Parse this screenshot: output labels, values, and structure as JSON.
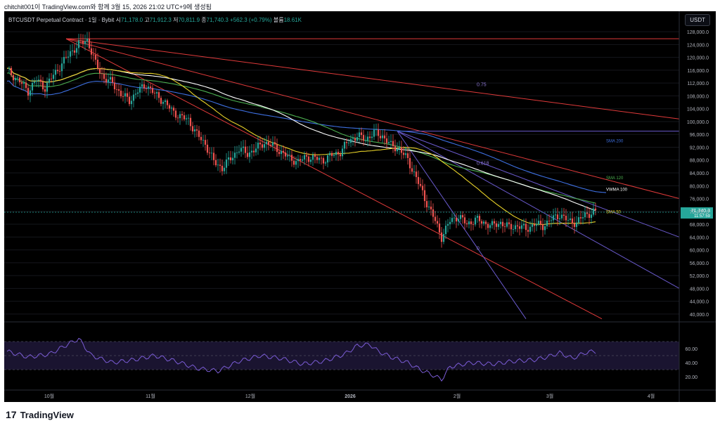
{
  "header": {
    "caption": "chitchit001이 TradingView.com와 함께 3월 15, 2026 21:02 UTC+9에 생성됨"
  },
  "legend": {
    "symbol": "BTCUSDT Perpetual Contract · 1일 · Bybit",
    "open_label": "시",
    "open": "71,178.0",
    "high_label": "고",
    "high": "71,912.3",
    "low_label": "저",
    "low": "70,811.9",
    "close_label": "종",
    "close": "71,740.3",
    "change": "+562.3 (+0.79%)",
    "volume_label": "볼륨",
    "volume": "18.61K"
  },
  "currency_button": "USDT",
  "last_price": {
    "price": "71,740.3",
    "countdown": "11:57:59"
  },
  "brand": {
    "name": "TradingView",
    "logo_text": "17"
  },
  "colors": {
    "up": "#26a69a",
    "down": "#ef5350",
    "sma50": "#e6d028",
    "sma120": "#4caf50",
    "sma200": "#3d6fe0",
    "vwma100": "#ffffff",
    "fan_red": "#e03a3a",
    "fan_violet": "#6a5acd",
    "rsi": "#7b5cd6"
  },
  "chart_data": [
    {
      "type": "candlestick",
      "title": "",
      "x_tick_labels": [
        "10월",
        "11월",
        "12월",
        "2026",
        "2월",
        "3월",
        "4월"
      ],
      "y_tick_labels": [
        "128,000.0",
        "124,000.0",
        "120,000.0",
        "116,000.0",
        "112,000.0",
        "108,000.0",
        "104,000.0",
        "100,000.0",
        "96,000.0",
        "92,000.0",
        "88,000.0",
        "84,000.0",
        "80,000.0",
        "76,000.0",
        "72,000.0",
        "68,000.0",
        "64,000.0",
        "60,000.0",
        "56,000.0",
        "52,000.0",
        "48,000.0",
        "44,000.0",
        "40,000.0"
      ],
      "ylim": [
        38000,
        130000
      ],
      "moving_averages": [
        {
          "name": "SMA 200",
          "color": "#3d6fe0",
          "last": 94000
        },
        {
          "name": "SMA 120",
          "color": "#4caf50",
          "last": 82500
        },
        {
          "name": "VWMA 100",
          "color": "#ffffff",
          "last": 78800
        },
        {
          "name": "SMA 50",
          "color": "#e6d028",
          "last": 71800
        }
      ],
      "fib_labels": [
        "0.75",
        "0.618",
        "0"
      ],
      "keyframes_close": [
        [
          0,
          116000
        ],
        [
          6,
          112500
        ],
        [
          10,
          109500
        ],
        [
          14,
          113000
        ],
        [
          18,
          110500
        ],
        [
          22,
          114500
        ],
        [
          26,
          118000
        ],
        [
          30,
          121500
        ],
        [
          34,
          124000
        ],
        [
          38,
          125500
        ],
        [
          42,
          118000
        ],
        [
          46,
          113500
        ],
        [
          50,
          112000
        ],
        [
          54,
          108500
        ],
        [
          58,
          106500
        ],
        [
          62,
          109500
        ],
        [
          66,
          111500
        ],
        [
          70,
          108500
        ],
        [
          74,
          106500
        ],
        [
          78,
          103500
        ],
        [
          82,
          101500
        ],
        [
          86,
          100500
        ],
        [
          90,
          96000
        ],
        [
          94,
          93000
        ],
        [
          98,
          87500
        ],
        [
          102,
          85500
        ],
        [
          106,
          88500
        ],
        [
          110,
          91500
        ],
        [
          114,
          90000
        ],
        [
          118,
          91500
        ],
        [
          122,
          93500
        ],
        [
          126,
          92500
        ],
        [
          130,
          90500
        ],
        [
          134,
          88500
        ],
        [
          138,
          87500
        ],
        [
          142,
          89000
        ],
        [
          146,
          88500
        ],
        [
          150,
          88000
        ],
        [
          154,
          89500
        ],
        [
          158,
          90500
        ],
        [
          162,
          94000
        ],
        [
          166,
          95500
        ],
        [
          170,
          94500
        ],
        [
          174,
          96500
        ],
        [
          178,
          95500
        ],
        [
          182,
          92500
        ],
        [
          186,
          91500
        ],
        [
          190,
          88000
        ],
        [
          194,
          82500
        ],
        [
          198,
          76000
        ],
        [
          202,
          70500
        ],
        [
          206,
          64000
        ],
        [
          210,
          69000
        ],
        [
          214,
          70500
        ],
        [
          218,
          68000
        ],
        [
          222,
          69500
        ],
        [
          226,
          68500
        ],
        [
          230,
          67500
        ],
        [
          234,
          68500
        ],
        [
          238,
          67000
        ],
        [
          242,
          67500
        ],
        [
          246,
          66500
        ],
        [
          250,
          68000
        ],
        [
          254,
          67500
        ],
        [
          258,
          69500
        ],
        [
          262,
          71000
        ],
        [
          266,
          69000
        ],
        [
          270,
          68500
        ],
        [
          274,
          71000
        ],
        [
          278,
          71740
        ]
      ],
      "rsi": {
        "ylim": [
          10,
          95
        ],
        "tick_labels": [
          "60.00",
          "40.00",
          "20.00"
        ],
        "bands": [
          70,
          50,
          30
        ],
        "keyframes": [
          [
            0,
            56
          ],
          [
            10,
            48
          ],
          [
            20,
            52
          ],
          [
            30,
            68
          ],
          [
            34,
            74
          ],
          [
            40,
            50
          ],
          [
            50,
            40
          ],
          [
            60,
            44
          ],
          [
            70,
            50
          ],
          [
            80,
            42
          ],
          [
            90,
            32
          ],
          [
            100,
            28
          ],
          [
            110,
            42
          ],
          [
            120,
            50
          ],
          [
            130,
            46
          ],
          [
            140,
            38
          ],
          [
            150,
            42
          ],
          [
            160,
            52
          ],
          [
            166,
            64
          ],
          [
            172,
            66
          ],
          [
            176,
            56
          ],
          [
            182,
            48
          ],
          [
            190,
            40
          ],
          [
            196,
            30
          ],
          [
            202,
            22
          ],
          [
            206,
            16
          ],
          [
            210,
            34
          ],
          [
            220,
            40
          ],
          [
            230,
            38
          ],
          [
            240,
            42
          ],
          [
            250,
            44
          ],
          [
            256,
            48
          ],
          [
            262,
            54
          ],
          [
            268,
            46
          ],
          [
            274,
            54
          ],
          [
            278,
            56
          ]
        ]
      }
    }
  ]
}
